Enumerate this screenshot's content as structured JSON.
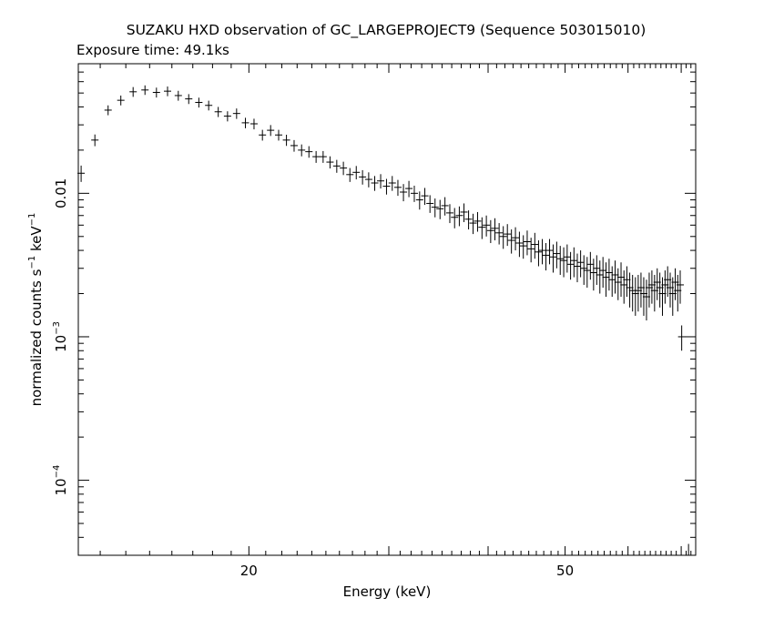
{
  "chart_data": {
    "type": "scatter",
    "title": "SUZAKU HXD observation of GC_LARGEPROJECT9 (Sequence 503015010)",
    "subtitle": "Exposure time: 49.1ks",
    "xlabel": "Energy (keV)",
    "ylabel_main": "normalized counts s",
    "ylabel_sup1": "−1",
    "ylabel_mid": " keV",
    "ylabel_sup2": "−1",
    "x_scale": "log",
    "y_scale": "log",
    "xlim": [
      12.2,
      73
    ],
    "ylim": [
      3e-05,
      0.08
    ],
    "x_ticks": [
      {
        "value": 20,
        "label": "20"
      },
      {
        "value": 50,
        "label": "50"
      }
    ],
    "y_ticks": [
      {
        "value": 0.01,
        "base": "0.01",
        "exp": ""
      },
      {
        "value": 0.001,
        "base": "10",
        "exp": "−3"
      },
      {
        "value": 0.0001,
        "base": "10",
        "exp": "−4"
      }
    ],
    "grid": false,
    "series": [
      {
        "points": [
          [
            12.3,
            0.0138,
            0.0018
          ],
          [
            12.8,
            0.0235,
            0.0022
          ],
          [
            13.3,
            0.038,
            0.003
          ],
          [
            13.8,
            0.0445,
            0.0035
          ],
          [
            14.3,
            0.051,
            0.004
          ],
          [
            14.8,
            0.0525,
            0.004
          ],
          [
            15.3,
            0.0505,
            0.004
          ],
          [
            15.8,
            0.0515,
            0.004
          ],
          [
            16.3,
            0.048,
            0.0038
          ],
          [
            16.8,
            0.0455,
            0.0036
          ],
          [
            17.3,
            0.043,
            0.0034
          ],
          [
            17.8,
            0.041,
            0.0032
          ],
          [
            18.3,
            0.037,
            0.003
          ],
          [
            18.8,
            0.0345,
            0.0028
          ],
          [
            19.3,
            0.036,
            0.003
          ],
          [
            19.8,
            0.031,
            0.0026
          ],
          [
            20.3,
            0.0305,
            0.0026
          ],
          [
            20.8,
            0.0255,
            0.0022
          ],
          [
            21.3,
            0.0275,
            0.0024
          ],
          [
            21.8,
            0.0255,
            0.0022
          ],
          [
            22.3,
            0.0235,
            0.0021
          ],
          [
            22.8,
            0.0215,
            0.002
          ],
          [
            23.3,
            0.02,
            0.0019
          ],
          [
            23.8,
            0.0195,
            0.0018
          ],
          [
            24.3,
            0.018,
            0.0017
          ],
          [
            24.8,
            0.018,
            0.0017
          ],
          [
            25.3,
            0.0165,
            0.0016
          ],
          [
            25.8,
            0.0155,
            0.0016
          ],
          [
            26.3,
            0.015,
            0.0016
          ],
          [
            26.8,
            0.0135,
            0.0015
          ],
          [
            27.3,
            0.014,
            0.0015
          ],
          [
            27.8,
            0.013,
            0.0015
          ],
          [
            28.3,
            0.0125,
            0.0015
          ],
          [
            28.8,
            0.0118,
            0.0014
          ],
          [
            29.3,
            0.0122,
            0.0014
          ],
          [
            29.8,
            0.0112,
            0.0014
          ],
          [
            30.3,
            0.0118,
            0.0014
          ],
          [
            30.8,
            0.011,
            0.0014
          ],
          [
            31.3,
            0.0102,
            0.0014
          ],
          [
            31.8,
            0.0108,
            0.0014
          ],
          [
            32.3,
            0.01,
            0.0013
          ],
          [
            32.8,
            0.009,
            0.0013
          ],
          [
            33.3,
            0.0096,
            0.0013
          ],
          [
            33.8,
            0.0085,
            0.0012
          ],
          [
            34.3,
            0.008,
            0.0012
          ],
          [
            34.8,
            0.0078,
            0.0012
          ],
          [
            35.3,
            0.0082,
            0.0012
          ],
          [
            35.8,
            0.0073,
            0.0011
          ],
          [
            36.3,
            0.0068,
            0.0011
          ],
          [
            36.8,
            0.007,
            0.0011
          ],
          [
            37.3,
            0.0074,
            0.0011
          ],
          [
            37.8,
            0.0066,
            0.001
          ],
          [
            38.3,
            0.0062,
            0.001
          ],
          [
            38.8,
            0.0064,
            0.001
          ],
          [
            39.3,
            0.0058,
            0.001
          ],
          [
            39.8,
            0.006,
            0.001
          ],
          [
            40.3,
            0.0055,
            0.001
          ],
          [
            40.8,
            0.0057,
            0.001
          ],
          [
            41.3,
            0.0053,
            0.0009
          ],
          [
            41.8,
            0.005,
            0.0009
          ],
          [
            42.3,
            0.0052,
            0.0009
          ],
          [
            42.8,
            0.0047,
            0.0009
          ],
          [
            43.3,
            0.0049,
            0.0009
          ],
          [
            43.8,
            0.0045,
            0.0009
          ],
          [
            44.3,
            0.0043,
            0.0008
          ],
          [
            44.8,
            0.0046,
            0.0009
          ],
          [
            45.3,
            0.0041,
            0.0008
          ],
          [
            45.8,
            0.0044,
            0.0009
          ],
          [
            46.3,
            0.0039,
            0.0008
          ],
          [
            46.8,
            0.004,
            0.0008
          ],
          [
            47.3,
            0.0037,
            0.0008
          ],
          [
            47.8,
            0.004,
            0.0008
          ],
          [
            48.3,
            0.0036,
            0.0008
          ],
          [
            48.8,
            0.0038,
            0.0008
          ],
          [
            49.3,
            0.0035,
            0.0008
          ],
          [
            49.8,
            0.0034,
            0.0008
          ],
          [
            50.3,
            0.0036,
            0.0008
          ],
          [
            50.8,
            0.0032,
            0.0007
          ],
          [
            51.3,
            0.0034,
            0.0008
          ],
          [
            51.8,
            0.0031,
            0.0007
          ],
          [
            52.3,
            0.0033,
            0.0007
          ],
          [
            52.8,
            0.003,
            0.0007
          ],
          [
            53.3,
            0.0029,
            0.0007
          ],
          [
            53.8,
            0.0032,
            0.0007
          ],
          [
            54.3,
            0.0028,
            0.0007
          ],
          [
            54.8,
            0.003,
            0.0007
          ],
          [
            55.3,
            0.0027,
            0.0007
          ],
          [
            55.8,
            0.0029,
            0.0007
          ],
          [
            56.3,
            0.0026,
            0.0007
          ],
          [
            56.8,
            0.0028,
            0.0007
          ],
          [
            57.3,
            0.0025,
            0.0006
          ],
          [
            57.8,
            0.0027,
            0.0007
          ],
          [
            58.3,
            0.0024,
            0.0006
          ],
          [
            58.8,
            0.0026,
            0.0007
          ],
          [
            59.3,
            0.0023,
            0.0006
          ],
          [
            59.8,
            0.0025,
            0.0006
          ],
          [
            60.3,
            0.0022,
            0.0006
          ],
          [
            60.8,
            0.0021,
            0.0006
          ],
          [
            61.3,
            0.002,
            0.0006
          ],
          [
            61.8,
            0.0021,
            0.0006
          ],
          [
            62.3,
            0.0022,
            0.0006
          ],
          [
            62.8,
            0.002,
            0.0006
          ],
          [
            63.3,
            0.0019,
            0.0006
          ],
          [
            63.8,
            0.0022,
            0.0006
          ],
          [
            64.3,
            0.0023,
            0.0006
          ],
          [
            64.8,
            0.0021,
            0.0006
          ],
          [
            65.3,
            0.0024,
            0.0006
          ],
          [
            65.8,
            0.0022,
            0.0006
          ],
          [
            66.3,
            0.002,
            0.0006
          ],
          [
            66.8,
            0.0023,
            0.0006
          ],
          [
            67.3,
            0.0025,
            0.0006
          ],
          [
            67.8,
            0.0022,
            0.0006
          ],
          [
            68.3,
            0.002,
            0.0006
          ],
          [
            68.8,
            0.0024,
            0.0006
          ],
          [
            69.3,
            0.0021,
            0.0006
          ],
          [
            69.8,
            0.0023,
            0.0006
          ],
          [
            70.1,
            0.001,
            0.0002
          ]
        ]
      }
    ],
    "reference_cross": {
      "x": 71.5,
      "y": 3e-05,
      "x_err": 1.3,
      "y_err": 6e-06
    }
  }
}
